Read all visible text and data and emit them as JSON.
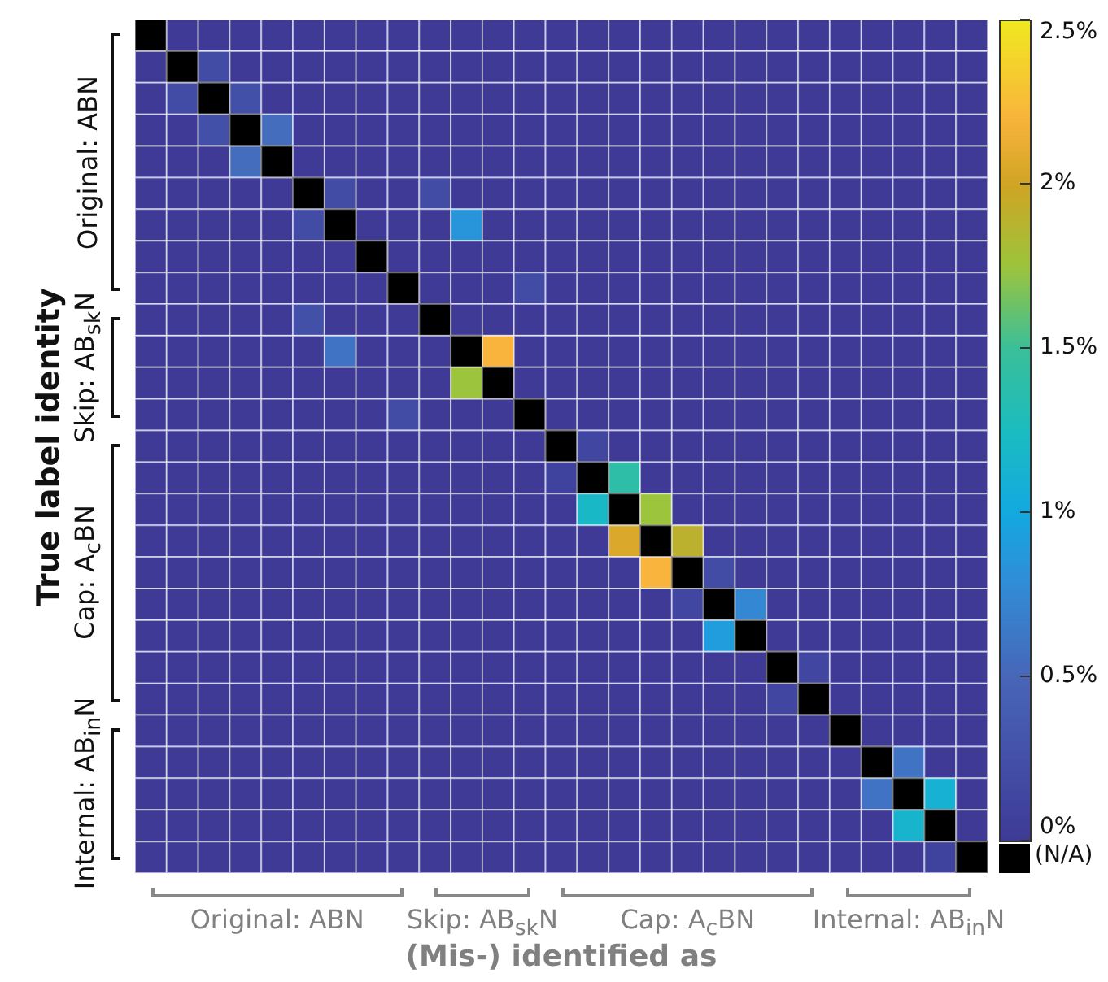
{
  "chart_data": {
    "type": "heatmap",
    "xlabel": "(Mis-) identified as",
    "ylabel": "True label identity",
    "categories": [
      null,
      null,
      null,
      null,
      null,
      null,
      null,
      null,
      null,
      null,
      null,
      null,
      null,
      null,
      null,
      null,
      null,
      null,
      null,
      null,
      null,
      null,
      null,
      null,
      null,
      null,
      null
    ],
    "y_categories": [
      null,
      null,
      null,
      null,
      null,
      null,
      null,
      null,
      null,
      null,
      null,
      null,
      null,
      null,
      null,
      null,
      null,
      null,
      null,
      null,
      null,
      null,
      null,
      null,
      null,
      null,
      null
    ],
    "cells": [
      [
        null,
        0,
        0,
        0,
        0,
        0,
        0,
        0,
        0,
        0,
        0,
        0,
        0,
        0,
        0,
        0,
        0,
        0,
        0,
        0,
        0,
        0,
        0,
        0,
        0,
        0,
        0
      ],
      [
        0,
        null,
        0.2,
        0,
        0,
        0,
        0,
        0,
        0,
        0,
        0,
        0,
        0,
        0,
        0,
        0,
        0,
        0,
        0,
        0,
        0,
        0,
        0,
        0,
        0,
        0,
        0
      ],
      [
        0,
        0.2,
        null,
        0.25,
        0,
        0,
        0,
        0,
        0,
        0,
        0,
        0,
        0,
        0,
        0,
        0,
        0,
        0,
        0,
        0,
        0,
        0,
        0,
        0,
        0,
        0,
        0
      ],
      [
        0,
        0,
        0.25,
        null,
        0.55,
        0,
        0,
        0,
        0,
        0,
        0,
        0,
        0,
        0,
        0,
        0,
        0,
        0,
        0,
        0,
        0,
        0,
        0,
        0,
        0,
        0,
        0
      ],
      [
        0,
        0,
        0,
        0.55,
        null,
        0,
        0,
        0,
        0,
        0,
        0,
        0,
        0,
        0,
        0,
        0,
        0,
        0,
        0,
        0,
        0,
        0,
        0,
        0,
        0,
        0,
        0
      ],
      [
        0,
        0,
        0,
        0,
        0,
        null,
        0.2,
        0,
        0,
        0.2,
        0,
        0,
        0,
        0,
        0,
        0,
        0,
        0,
        0,
        0,
        0,
        0,
        0,
        0,
        0,
        0,
        0
      ],
      [
        0,
        0,
        0,
        0,
        0,
        0.2,
        null,
        0,
        0,
        0,
        0.85,
        0,
        0,
        0,
        0,
        0,
        0,
        0,
        0,
        0,
        0,
        0,
        0,
        0,
        0,
        0,
        0
      ],
      [
        0,
        0,
        0,
        0,
        0,
        0,
        0,
        null,
        0,
        0,
        0,
        0,
        0,
        0,
        0,
        0,
        0,
        0,
        0,
        0,
        0,
        0,
        0,
        0,
        0,
        0,
        0
      ],
      [
        0,
        0,
        0,
        0,
        0,
        0,
        0,
        0,
        null,
        0,
        0,
        0,
        0.2,
        0,
        0,
        0,
        0,
        0,
        0,
        0,
        0,
        0,
        0,
        0,
        0,
        0,
        0
      ],
      [
        0,
        0,
        0,
        0,
        0,
        0.25,
        0,
        0,
        0,
        null,
        0,
        0,
        0,
        0,
        0,
        0,
        0,
        0,
        0,
        0,
        0,
        0,
        0,
        0,
        0,
        0,
        0
      ],
      [
        0,
        0,
        0,
        0,
        0,
        0,
        0.6,
        0,
        0,
        0,
        null,
        2.2,
        0,
        0,
        0,
        0,
        0,
        0,
        0,
        0,
        0,
        0,
        0,
        0,
        0,
        0,
        0
      ],
      [
        0,
        0,
        0,
        0,
        0,
        0,
        0,
        0,
        0,
        0,
        1.75,
        null,
        0,
        0,
        0,
        0,
        0,
        0,
        0,
        0,
        0,
        0,
        0,
        0,
        0,
        0,
        0
      ],
      [
        0,
        0,
        0,
        0,
        0,
        0,
        0,
        0,
        0.2,
        0,
        0,
        0,
        null,
        0,
        0,
        0,
        0,
        0,
        0,
        0,
        0,
        0,
        0,
        0,
        0,
        0,
        0
      ],
      [
        0,
        0,
        0,
        0,
        0,
        0,
        0,
        0,
        0,
        0,
        0,
        0,
        0,
        null,
        0.15,
        0,
        0,
        0,
        0,
        0,
        0,
        0,
        0,
        0,
        0,
        0,
        0
      ],
      [
        0,
        0,
        0,
        0,
        0,
        0,
        0,
        0,
        0,
        0,
        0,
        0,
        0,
        0.1,
        null,
        1.4,
        0,
        0,
        0,
        0,
        0,
        0,
        0,
        0,
        0,
        0,
        0
      ],
      [
        0,
        0,
        0,
        0,
        0,
        0,
        0,
        0,
        0,
        0,
        0,
        0,
        0,
        0,
        1.2,
        null,
        1.75,
        0,
        0,
        0,
        0,
        0,
        0,
        0,
        0,
        0,
        0
      ],
      [
        0,
        0,
        0,
        0,
        0,
        0,
        0,
        0,
        0,
        0,
        0,
        0,
        0,
        0,
        0,
        2.05,
        null,
        1.9,
        0,
        0,
        0,
        0,
        0,
        0,
        0,
        0,
        0
      ],
      [
        0,
        0,
        0,
        0,
        0,
        0,
        0,
        0,
        0,
        0,
        0,
        0,
        0,
        0,
        0,
        0,
        2.2,
        null,
        0.2,
        0,
        0,
        0,
        0,
        0,
        0,
        0,
        0
      ],
      [
        0,
        0,
        0,
        0,
        0,
        0,
        0,
        0,
        0,
        0,
        0,
        0,
        0,
        0,
        0,
        0,
        0,
        0.15,
        null,
        0.75,
        0,
        0,
        0,
        0,
        0,
        0,
        0
      ],
      [
        0,
        0,
        0,
        0,
        0,
        0,
        0,
        0,
        0,
        0,
        0,
        0,
        0,
        0,
        0,
        0,
        0,
        0,
        0.9,
        null,
        0,
        0,
        0,
        0,
        0,
        0,
        0
      ],
      [
        0,
        0,
        0,
        0,
        0,
        0,
        0,
        0,
        0,
        0,
        0,
        0,
        0,
        0,
        0,
        0,
        0,
        0,
        0,
        0,
        null,
        0.15,
        0,
        0,
        0,
        0,
        0
      ],
      [
        0,
        0,
        0,
        0,
        0,
        0,
        0,
        0,
        0,
        0,
        0,
        0,
        0,
        0,
        0,
        0,
        0,
        0,
        0,
        0,
        0.15,
        null,
        0,
        0,
        0,
        0,
        0
      ],
      [
        0,
        0,
        0,
        0,
        0,
        0,
        0,
        0,
        0,
        0,
        0,
        0,
        0,
        0,
        0,
        0,
        0,
        0,
        0,
        0,
        0,
        0,
        null,
        0,
        0,
        0,
        0
      ],
      [
        0,
        0,
        0,
        0,
        0,
        0,
        0,
        0,
        0,
        0,
        0,
        0,
        0,
        0,
        0,
        0,
        0,
        0,
        0,
        0,
        0,
        0,
        0,
        null,
        0.6,
        0,
        0
      ],
      [
        0,
        0,
        0,
        0,
        0,
        0,
        0,
        0,
        0,
        0,
        0,
        0,
        0,
        0,
        0,
        0,
        0,
        0,
        0,
        0,
        0,
        0,
        0,
        0.6,
        null,
        1.1,
        0
      ],
      [
        0,
        0,
        0,
        0,
        0,
        0,
        0,
        0,
        0,
        0,
        0,
        0,
        0,
        0,
        0,
        0,
        0,
        0,
        0,
        0,
        0,
        0,
        0,
        0,
        1.15,
        null,
        0
      ],
      [
        0,
        0,
        0,
        0,
        0,
        0,
        0,
        0,
        0,
        0,
        0,
        0,
        0,
        0,
        0,
        0,
        0,
        0,
        0,
        0,
        0,
        0,
        0,
        0,
        0,
        0.1,
        null
      ]
    ],
    "clim": [
      0,
      2.5
    ],
    "cticks": [
      {
        "value": 0,
        "label": "0%"
      },
      {
        "value": 0.5,
        "label": "0.5%"
      },
      {
        "value": 1,
        "label": "1%"
      },
      {
        "value": 1.5,
        "label": "1.5%"
      },
      {
        "value": 2,
        "label": "2%"
      },
      {
        "value": 2.5,
        "label": "2.5%"
      }
    ],
    "annotations": [
      "Original: ABN",
      "Skip: AB$_{sk}$N",
      "Cap: A$_{c}$BN",
      "Internal: AB$_{in}$N",
      "Original: ABN",
      "Skip: AB$_{sk}$N",
      "Cap: A$_{c}$BN",
      "Internal: AB$_{in}$N",
      "(N/A)"
    ]
  }
}
